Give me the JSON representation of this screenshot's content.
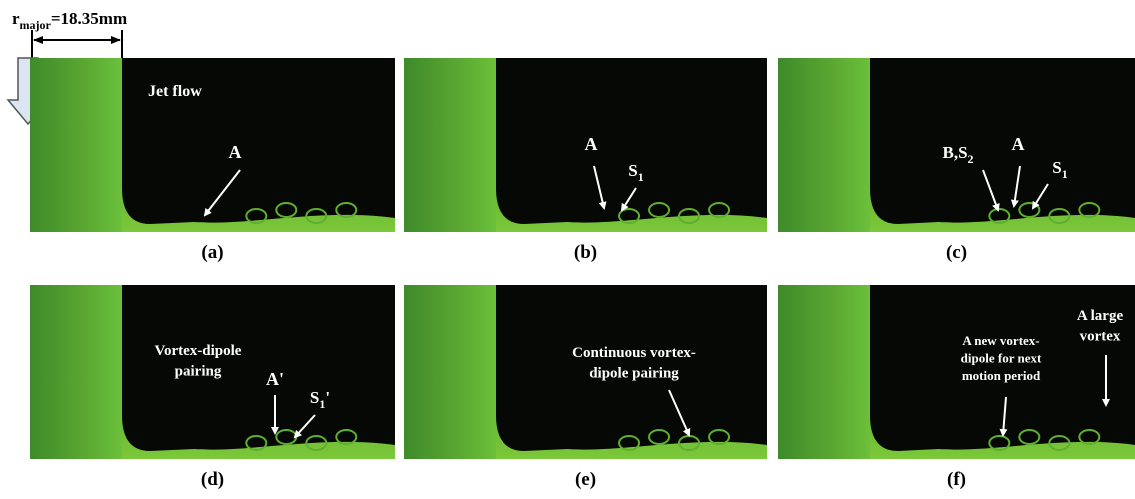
{
  "scale": {
    "symbol": "r",
    "subscript": "major",
    "value": "=18.35mm"
  },
  "panels": [
    {
      "label": "(a)",
      "annotations": [
        {
          "lines": [
            "Jet flow"
          ]
        },
        {
          "text": "A"
        }
      ]
    },
    {
      "label": "(b)",
      "annotations": [
        {
          "text": "A"
        },
        {
          "text": "S",
          "sub": "1"
        }
      ]
    },
    {
      "label": "(c)",
      "annotations": [
        {
          "text": "B,S",
          "sub": "2"
        },
        {
          "text": "A"
        },
        {
          "text": "S",
          "sub": "1"
        }
      ]
    },
    {
      "label": "(d)",
      "annotations": [
        {
          "lines": [
            "Vortex-dipole",
            "pairing"
          ]
        },
        {
          "text": "A'"
        },
        {
          "text": "S",
          "sub": "1",
          "suffix": "'"
        }
      ]
    },
    {
      "label": "(e)",
      "annotations": [
        {
          "lines": [
            "Continuous vortex-",
            "dipole pairing"
          ]
        }
      ]
    },
    {
      "label": "(f)",
      "annotations": [
        {
          "lines": [
            "A new vortex-",
            "dipole for next",
            "motion period"
          ]
        },
        {
          "lines": [
            "A large",
            "vortex"
          ]
        }
      ]
    }
  ]
}
